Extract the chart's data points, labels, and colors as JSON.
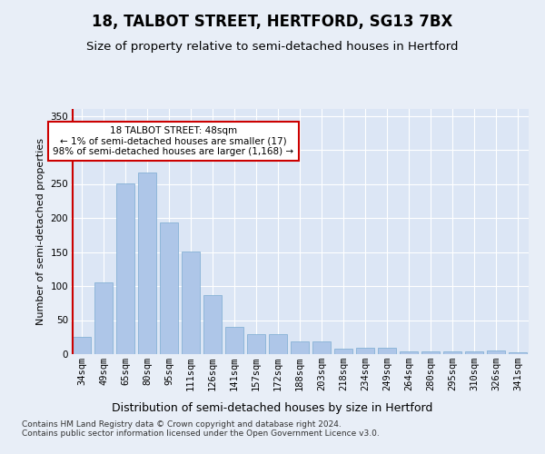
{
  "title1": "18, TALBOT STREET, HERTFORD, SG13 7BX",
  "title2": "Size of property relative to semi-detached houses in Hertford",
  "xlabel": "Distribution of semi-detached houses by size in Hertford",
  "ylabel": "Number of semi-detached properties",
  "categories": [
    "34sqm",
    "49sqm",
    "65sqm",
    "80sqm",
    "95sqm",
    "111sqm",
    "126sqm",
    "141sqm",
    "157sqm",
    "172sqm",
    "188sqm",
    "203sqm",
    "218sqm",
    "234sqm",
    "249sqm",
    "264sqm",
    "280sqm",
    "295sqm",
    "310sqm",
    "326sqm",
    "341sqm"
  ],
  "values": [
    25,
    105,
    251,
    267,
    194,
    151,
    87,
    40,
    29,
    30,
    19,
    19,
    8,
    9,
    9,
    4,
    4,
    4,
    4,
    5,
    3
  ],
  "bar_color": "#aec6e8",
  "bar_edge_color": "#7aaad0",
  "highlight_bar_index": 0,
  "highlight_color": "#cc0000",
  "annotation_text": "18 TALBOT STREET: 48sqm\n← 1% of semi-detached houses are smaller (17)\n98% of semi-detached houses are larger (1,168) →",
  "annotation_box_color": "#ffffff",
  "annotation_box_edge_color": "#cc0000",
  "footer_text": "Contains HM Land Registry data © Crown copyright and database right 2024.\nContains public sector information licensed under the Open Government Licence v3.0.",
  "ylim": [
    0,
    360
  ],
  "yticks": [
    0,
    50,
    100,
    150,
    200,
    250,
    300,
    350
  ],
  "bg_color": "#e8eef7",
  "plot_bg_color": "#dce6f5",
  "grid_color": "#ffffff",
  "title1_fontsize": 12,
  "title2_fontsize": 9.5,
  "xlabel_fontsize": 9,
  "ylabel_fontsize": 8,
  "tick_fontsize": 7.5,
  "footer_fontsize": 6.5
}
